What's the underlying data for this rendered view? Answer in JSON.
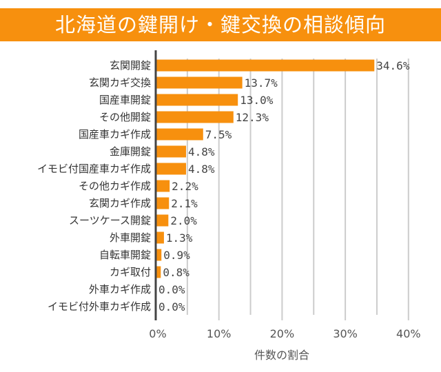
{
  "title": "北海道の鍵開け・鍵交換の相談傾向",
  "chart_data": {
    "type": "bar",
    "orientation": "horizontal",
    "title": "北海道の鍵開け・鍵交換の相談傾向",
    "xlabel": "件数の割合",
    "ylabel": "",
    "xlim": [
      0,
      40
    ],
    "x_ticks": [
      "0%",
      "10%",
      "20%",
      "30%",
      "40%"
    ],
    "grid": true,
    "categories": [
      "玄関開錠",
      "玄関カギ交換",
      "国産車開錠",
      "その他開錠",
      "国産車カギ作成",
      "金庫開錠",
      "イモビ付国産車カギ作成",
      "その他カギ作成",
      "玄関カギ作成",
      "スーツケース開錠",
      "外車開錠",
      "自転車開錠",
      "カギ取付",
      "外車カギ作成",
      "イモビ付外車カギ作成"
    ],
    "values": [
      34.6,
      13.7,
      13.0,
      12.3,
      7.5,
      4.8,
      4.8,
      2.2,
      2.1,
      2.0,
      1.3,
      0.9,
      0.8,
      0.0,
      0.0
    ],
    "data_labels": [
      "34.6%",
      "13.7%",
      "13.0%",
      "12.3%",
      "7.5%",
      "4.8%",
      "4.8%",
      "2.2%",
      "2.1%",
      "2.0%",
      "1.3%",
      "0.9%",
      "0.8%",
      "0.0%",
      "0.0%"
    ],
    "bar_color": "#f7900e",
    "banner_color": "#f7900e"
  }
}
